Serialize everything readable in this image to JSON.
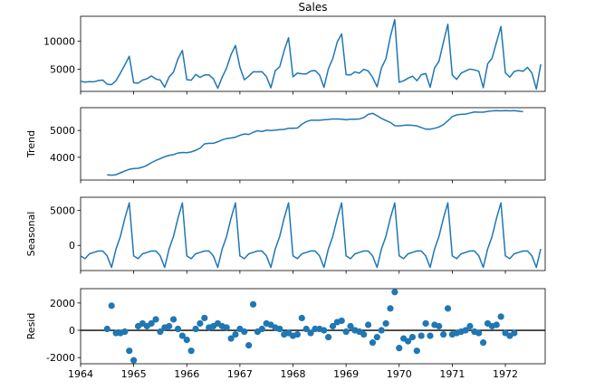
{
  "chart_data": [
    {
      "type": "line",
      "title": "Sales",
      "xlabel": "",
      "ylabel": "",
      "xlim": [
        1964.0,
        1972.75
      ],
      "ylim": [
        1000,
        14500
      ],
      "yticks": [
        5000,
        10000
      ],
      "color": "#1f77b4",
      "start": 1964.0,
      "step": 0.083333,
      "values": [
        2815,
        2672,
        2755,
        2721,
        2946,
        3036,
        2282,
        2212,
        2922,
        4301,
        5764,
        7312,
        2541,
        2475,
        3031,
        3266,
        3776,
        3230,
        3028,
        1759,
        3595,
        4474,
        6838,
        8357,
        3113,
        3006,
        4047,
        3523,
        3937,
        3986,
        3260,
        1573,
        3528,
        5211,
        7614,
        9254,
        5375,
        3088,
        3718,
        4514,
        4520,
        4539,
        3663,
        1643,
        4739,
        5428,
        8314,
        10651,
        3633,
        4292,
        4154,
        4121,
        4647,
        4753,
        3965,
        1723,
        5048,
        6922,
        9858,
        11331,
        4016,
        3957,
        4510,
        4276,
        4968,
        4677,
        3523,
        1821,
        5222,
        6872,
        10803,
        13916,
        2639,
        2899,
        3370,
        3740,
        2927,
        3986,
        4217,
        1738,
        5221,
        6424,
        9842,
        13076,
        3934,
        3162,
        4286,
        4676,
        5010,
        4874,
        4633,
        1659,
        5951,
        6981,
        9851,
        12670,
        4348,
        3564,
        4577,
        4788,
        4618,
        5312,
        4298,
        1413,
        5877
      ]
    },
    {
      "type": "line",
      "title": "",
      "xlabel": "",
      "ylabel": "Trend",
      "xlim": [
        1964.0,
        1972.75
      ],
      "ylim": [
        3150,
        5850
      ],
      "yticks": [
        4000,
        5000
      ],
      "color": "#1f77b4",
      "start": 1964.5,
      "step": 0.083333,
      "values": [
        3350,
        3330,
        3350,
        3420,
        3490,
        3550,
        3580,
        3590,
        3630,
        3700,
        3800,
        3880,
        3950,
        4020,
        4070,
        4100,
        4160,
        4180,
        4170,
        4200,
        4260,
        4340,
        4500,
        4520,
        4520,
        4580,
        4650,
        4700,
        4720,
        4750,
        4820,
        4870,
        4850,
        4930,
        4990,
        4960,
        5010,
        5000,
        5010,
        5030,
        5040,
        5080,
        5080,
        5090,
        5230,
        5330,
        5380,
        5380,
        5380,
        5400,
        5410,
        5430,
        5430,
        5420,
        5400,
        5420,
        5420,
        5430,
        5480,
        5600,
        5640,
        5550,
        5450,
        5370,
        5300,
        5180,
        5170,
        5190,
        5200,
        5190,
        5170,
        5110,
        5050,
        5050,
        5080,
        5130,
        5220,
        5360,
        5520,
        5580,
        5600,
        5610,
        5650,
        5690,
        5680,
        5680,
        5710,
        5730,
        5740,
        5730,
        5740,
        5730,
        5740,
        5720,
        5700
      ]
    },
    {
      "type": "line",
      "title": "",
      "xlabel": "",
      "ylabel": "Seasonal",
      "xlim": [
        1964.0,
        1972.75
      ],
      "ylim": [
        -3600,
        6900
      ],
      "yticks": [
        0,
        5000
      ],
      "color": "#1f77b4",
      "start": 1964.0,
      "step": 0.083333,
      "pattern": [
        -1500,
        -1900,
        -1200,
        -1000,
        -800,
        -800,
        -1500,
        -3150,
        -500,
        1300,
        3900,
        6100
      ]
    },
    {
      "type": "scatter",
      "title": "",
      "xlabel": "",
      "ylabel": "Resid",
      "xlim": [
        1964.0,
        1972.75
      ],
      "ylim": [
        -2450,
        3050
      ],
      "yticks": [
        -2000,
        0,
        2000
      ],
      "color": "#1f77b4",
      "zero_line": true,
      "xticks": [
        "1964",
        "1965",
        "1966",
        "1967",
        "1968",
        "1969",
        "1970",
        "1971",
        "1972"
      ],
      "start": 1964.5,
      "step": 0.083333,
      "values": [
        100,
        1800,
        -200,
        -200,
        -100,
        -1500,
        -2200,
        300,
        500,
        300,
        500,
        800,
        -100,
        200,
        300,
        800,
        100,
        -400,
        -700,
        -1500,
        100,
        500,
        900,
        200,
        300,
        500,
        300,
        200,
        -600,
        -300,
        100,
        -100,
        -1100,
        1900,
        -100,
        100,
        500,
        400,
        200,
        100,
        -300,
        -200,
        -400,
        -300,
        900,
        100,
        -200,
        100,
        100,
        0,
        -500,
        300,
        600,
        700,
        -100,
        300,
        0,
        -100,
        -300,
        400,
        -900,
        -500,
        0,
        500,
        1600,
        2800,
        -1300,
        -600,
        -800,
        -500,
        -1500,
        -400,
        500,
        -400,
        400,
        300,
        -300,
        1600,
        -300,
        -200,
        -100,
        0,
        300,
        -100,
        -200,
        -900,
        500,
        300,
        400,
        1000,
        -200,
        -400,
        -200
      ]
    }
  ],
  "x_tick_labels": [
    "1964",
    "1965",
    "1966",
    "1967",
    "1968",
    "1969",
    "1970",
    "1971",
    "1972"
  ],
  "x_tick_years": [
    1964,
    1965,
    1966,
    1967,
    1968,
    1969,
    1970,
    1971,
    1972
  ]
}
